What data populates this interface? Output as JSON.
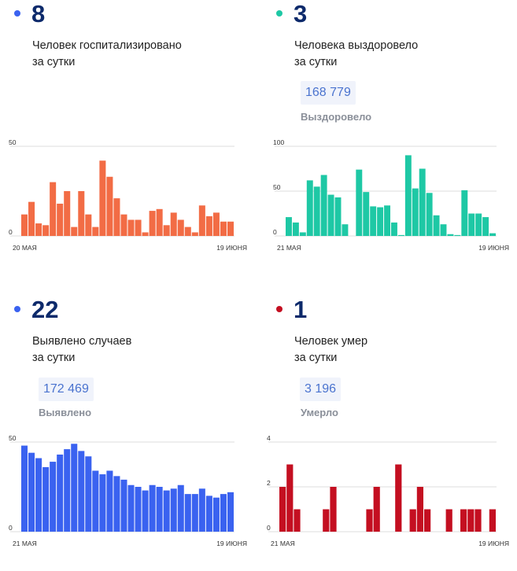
{
  "colors": {
    "hosp": "#f26c45",
    "recovered": "#1ec8a5",
    "cases": "#3a62f0",
    "deaths": "#c40f21",
    "bigNumber": "#0d2a6b"
  },
  "cards": {
    "hosp": {
      "value": "8",
      "desc": "Человек госпитализировано\nза сутки"
    },
    "rec": {
      "value": "3",
      "desc": "Человека выздоровело\nза сутки",
      "total": "168 779",
      "totalLabel": "Выздоровело"
    },
    "cases": {
      "value": "22",
      "desc": "Выявлено случаев\nза сутки",
      "total": "172 469",
      "totalLabel": "Выявлено"
    },
    "deaths": {
      "value": "1",
      "desc": "Человек умер\nза сутки",
      "total": "3 196",
      "totalLabel": "Умерло"
    }
  },
  "chart_data": [
    {
      "type": "bar",
      "id": "hosp",
      "color": "#f26c45",
      "xStart": "20 МАЯ",
      "xEnd": "19 ИЮНЯ",
      "ylim": [
        0,
        50
      ],
      "yticks": [
        "0",
        "50"
      ],
      "grid": true,
      "values": [
        12,
        19,
        7,
        6,
        30,
        18,
        25,
        5,
        25,
        12,
        5,
        42,
        33,
        21,
        12,
        9,
        9,
        2,
        14,
        15,
        6,
        13,
        9,
        5,
        2,
        17,
        11,
        13,
        8,
        8
      ]
    },
    {
      "type": "bar",
      "id": "recovered",
      "color": "#1ec8a5",
      "xStart": "21 МАЯ",
      "xEnd": "19 ИЮНЯ",
      "ylim": [
        0,
        100
      ],
      "yticks": [
        "0",
        "50",
        "100"
      ],
      "grid": true,
      "values": [
        21,
        15,
        4,
        62,
        55,
        68,
        46,
        43,
        13,
        0,
        74,
        49,
        33,
        32,
        34,
        15,
        1,
        90,
        53,
        75,
        48,
        23,
        13,
        2,
        1,
        51,
        25,
        25,
        21,
        3
      ]
    },
    {
      "type": "bar",
      "id": "cases",
      "color": "#3a62f0",
      "xStart": "21 МАЯ",
      "xEnd": "19 ИЮНЯ",
      "ylim": [
        0,
        50
      ],
      "yticks": [
        "0",
        "50"
      ],
      "grid": true,
      "values": [
        48,
        44,
        41,
        36,
        39,
        43,
        46,
        49,
        45,
        42,
        34,
        32,
        34,
        31,
        29,
        26,
        25,
        23,
        26,
        25,
        23,
        24,
        26,
        21,
        21,
        24,
        20,
        19,
        21,
        22
      ]
    },
    {
      "type": "bar",
      "id": "deaths",
      "color": "#c40f21",
      "xStart": "21 МАЯ",
      "xEnd": "19 ИЮНЯ",
      "ylim": [
        0,
        4
      ],
      "yticks": [
        "0",
        "2",
        "4"
      ],
      "grid": true,
      "values": [
        2,
        3,
        1,
        0,
        0,
        0,
        1,
        2,
        0,
        0,
        0,
        0,
        1,
        2,
        0,
        0,
        3,
        0,
        1,
        2,
        1,
        0,
        0,
        1,
        0,
        1,
        1,
        1,
        0,
        1
      ]
    }
  ]
}
